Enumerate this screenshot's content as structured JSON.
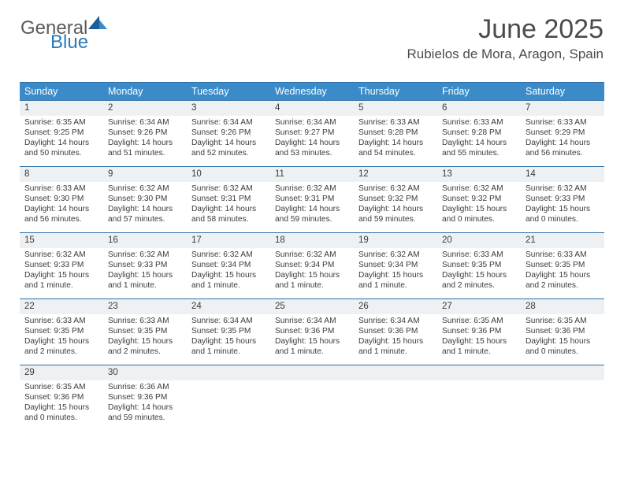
{
  "logo": {
    "part1": "General",
    "part2": "Blue"
  },
  "title": "June 2025",
  "location": "Rubielos de Mora, Aragon, Spain",
  "colors": {
    "header_bg": "#3b8bc8",
    "header_text": "#ffffff",
    "rule": "#2f6fa7",
    "daynum_bg": "#eef1f3",
    "text": "#3b3b3b",
    "logo_gray": "#6d6e70",
    "logo_blue": "#2a7ab9"
  },
  "weekdays": [
    "Sunday",
    "Monday",
    "Tuesday",
    "Wednesday",
    "Thursday",
    "Friday",
    "Saturday"
  ],
  "days": [
    {
      "n": 1,
      "sunrise": "6:35 AM",
      "sunset": "9:25 PM",
      "day_h": 14,
      "day_m": 50
    },
    {
      "n": 2,
      "sunrise": "6:34 AM",
      "sunset": "9:26 PM",
      "day_h": 14,
      "day_m": 51
    },
    {
      "n": 3,
      "sunrise": "6:34 AM",
      "sunset": "9:26 PM",
      "day_h": 14,
      "day_m": 52
    },
    {
      "n": 4,
      "sunrise": "6:34 AM",
      "sunset": "9:27 PM",
      "day_h": 14,
      "day_m": 53
    },
    {
      "n": 5,
      "sunrise": "6:33 AM",
      "sunset": "9:28 PM",
      "day_h": 14,
      "day_m": 54
    },
    {
      "n": 6,
      "sunrise": "6:33 AM",
      "sunset": "9:28 PM",
      "day_h": 14,
      "day_m": 55
    },
    {
      "n": 7,
      "sunrise": "6:33 AM",
      "sunset": "9:29 PM",
      "day_h": 14,
      "day_m": 56
    },
    {
      "n": 8,
      "sunrise": "6:33 AM",
      "sunset": "9:30 PM",
      "day_h": 14,
      "day_m": 56
    },
    {
      "n": 9,
      "sunrise": "6:32 AM",
      "sunset": "9:30 PM",
      "day_h": 14,
      "day_m": 57
    },
    {
      "n": 10,
      "sunrise": "6:32 AM",
      "sunset": "9:31 PM",
      "day_h": 14,
      "day_m": 58
    },
    {
      "n": 11,
      "sunrise": "6:32 AM",
      "sunset": "9:31 PM",
      "day_h": 14,
      "day_m": 59
    },
    {
      "n": 12,
      "sunrise": "6:32 AM",
      "sunset": "9:32 PM",
      "day_h": 14,
      "day_m": 59
    },
    {
      "n": 13,
      "sunrise": "6:32 AM",
      "sunset": "9:32 PM",
      "day_h": 15,
      "day_m": 0
    },
    {
      "n": 14,
      "sunrise": "6:32 AM",
      "sunset": "9:33 PM",
      "day_h": 15,
      "day_m": 0
    },
    {
      "n": 15,
      "sunrise": "6:32 AM",
      "sunset": "9:33 PM",
      "day_h": 15,
      "day_m": 1
    },
    {
      "n": 16,
      "sunrise": "6:32 AM",
      "sunset": "9:33 PM",
      "day_h": 15,
      "day_m": 1
    },
    {
      "n": 17,
      "sunrise": "6:32 AM",
      "sunset": "9:34 PM",
      "day_h": 15,
      "day_m": 1
    },
    {
      "n": 18,
      "sunrise": "6:32 AM",
      "sunset": "9:34 PM",
      "day_h": 15,
      "day_m": 1
    },
    {
      "n": 19,
      "sunrise": "6:32 AM",
      "sunset": "9:34 PM",
      "day_h": 15,
      "day_m": 1
    },
    {
      "n": 20,
      "sunrise": "6:33 AM",
      "sunset": "9:35 PM",
      "day_h": 15,
      "day_m": 2
    },
    {
      "n": 21,
      "sunrise": "6:33 AM",
      "sunset": "9:35 PM",
      "day_h": 15,
      "day_m": 2
    },
    {
      "n": 22,
      "sunrise": "6:33 AM",
      "sunset": "9:35 PM",
      "day_h": 15,
      "day_m": 2
    },
    {
      "n": 23,
      "sunrise": "6:33 AM",
      "sunset": "9:35 PM",
      "day_h": 15,
      "day_m": 2
    },
    {
      "n": 24,
      "sunrise": "6:34 AM",
      "sunset": "9:35 PM",
      "day_h": 15,
      "day_m": 1
    },
    {
      "n": 25,
      "sunrise": "6:34 AM",
      "sunset": "9:36 PM",
      "day_h": 15,
      "day_m": 1
    },
    {
      "n": 26,
      "sunrise": "6:34 AM",
      "sunset": "9:36 PM",
      "day_h": 15,
      "day_m": 1
    },
    {
      "n": 27,
      "sunrise": "6:35 AM",
      "sunset": "9:36 PM",
      "day_h": 15,
      "day_m": 1
    },
    {
      "n": 28,
      "sunrise": "6:35 AM",
      "sunset": "9:36 PM",
      "day_h": 15,
      "day_m": 0
    },
    {
      "n": 29,
      "sunrise": "6:35 AM",
      "sunset": "9:36 PM",
      "day_h": 15,
      "day_m": 0
    },
    {
      "n": 30,
      "sunrise": "6:36 AM",
      "sunset": "9:36 PM",
      "day_h": 14,
      "day_m": 59
    }
  ],
  "labels": {
    "sunrise_prefix": "Sunrise: ",
    "sunset_prefix": "Sunset: ",
    "daylight_prefix": "Daylight: ",
    "hours_word": " hours",
    "and_word": " and ",
    "minute_singular": " minute.",
    "minute_plural": " minutes."
  }
}
